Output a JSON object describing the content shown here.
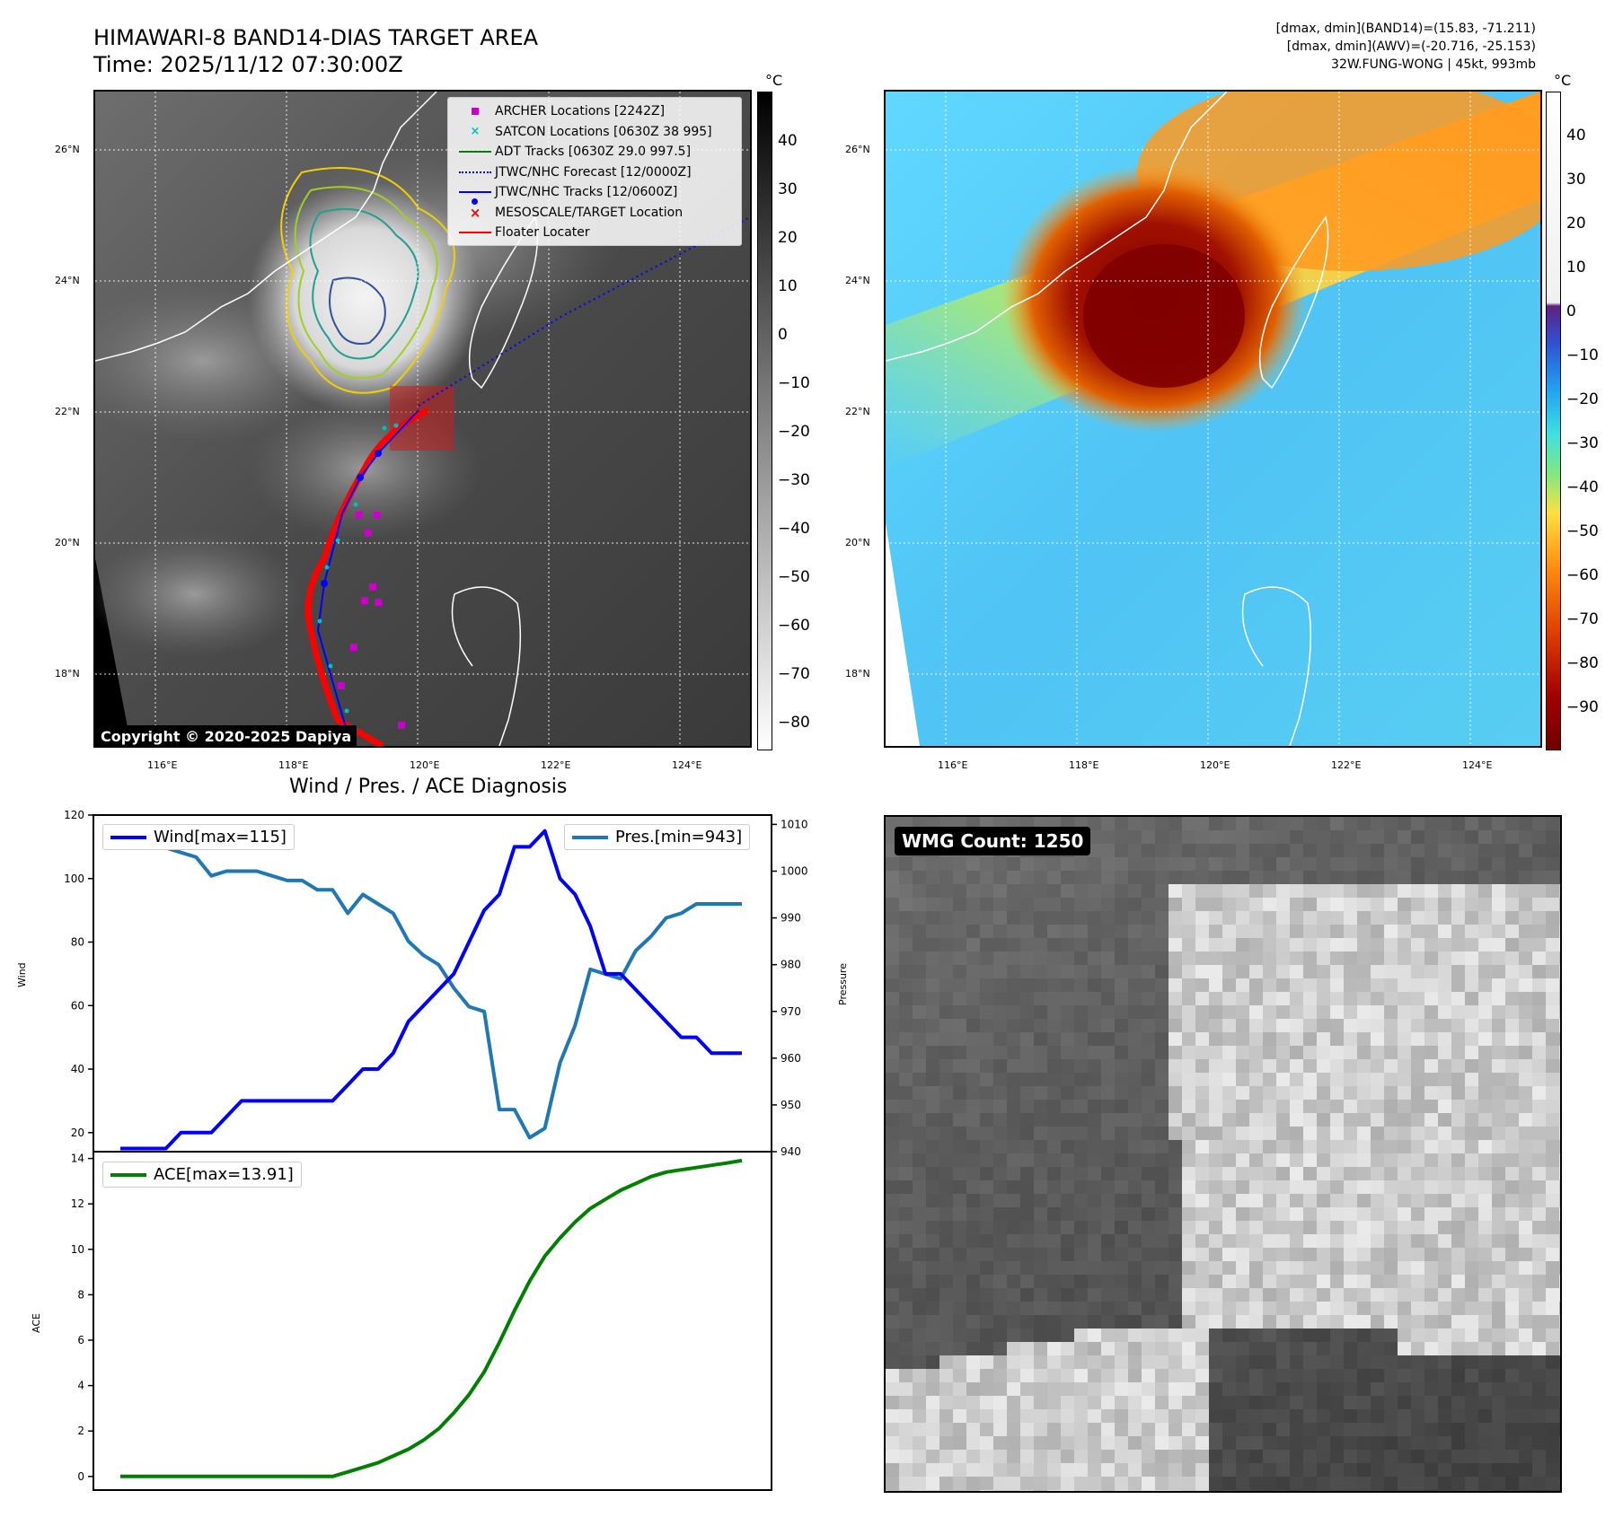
{
  "header": {
    "title_line1": "HIMAWARI-8 BAND14-DIAS TARGET AREA",
    "title_line2": "Time: 2025/11/12 07:30:00Z",
    "right_line1": "[dmax, dmin](BAND14)=(15.83, -71.211)",
    "right_line2": "[dmax, dmin](AWV)=(-20.716, -25.153)",
    "right_line3": "32W.FUNG-WONG | 45kt, 993mb"
  },
  "map": {
    "lon_labels": [
      "116°E",
      "118°E",
      "120°E",
      "122°E",
      "124°E"
    ],
    "lat_labels": [
      "26°N",
      "24°N",
      "22°N",
      "20°N",
      "18°N"
    ],
    "colorbar_unit": "°C",
    "gray_cbar_ticks": [
      "40",
      "30",
      "20",
      "10",
      "0",
      "−10",
      "−20",
      "−30",
      "−40",
      "−50",
      "−60",
      "−70",
      "−80"
    ],
    "color_cbar_ticks": [
      "40",
      "30",
      "20",
      "10",
      "0",
      "−10",
      "−20",
      "−30",
      "−40",
      "−50",
      "−60",
      "−70",
      "−80",
      "−90"
    ],
    "copyright": "Copyright © 2020-2025 Dapiya",
    "legend": [
      {
        "label": "ARCHER Locations [2242Z]",
        "color": "#cc00cc",
        "symbol": "square"
      },
      {
        "label": "SATCON Locations [0630Z 38 995]",
        "color": "#00bfbf",
        "symbol": "x"
      },
      {
        "label": "ADT Tracks [0630Z 29.0 997.5]",
        "color": "#008000",
        "symbol": "line"
      },
      {
        "label": "JTWC/NHC Forecast [12/0000Z]",
        "color": "#0000ff",
        "symbol": "dotted"
      },
      {
        "label": "JTWC/NHC Tracks [12/0600Z]",
        "color": "#0000ff",
        "symbol": "line-dot"
      },
      {
        "label": "MESOSCALE/TARGET Location",
        "color": "#ff0000",
        "symbol": "x"
      },
      {
        "label": "Floater Locater",
        "color": "#ff0000",
        "symbol": "line"
      }
    ]
  },
  "diagnosis": {
    "title": "Wind / Pres. / ACE Diagnosis",
    "wind_legend": "Wind[max=115]",
    "pres_legend": "Pres.[min=943]",
    "ace_legend": "ACE[max=13.91]",
    "wind_axis_label": "Wind",
    "pres_axis_label": "Pressure",
    "ace_axis_label": "ACE"
  },
  "wmg": {
    "badge": "WMG Count: 1250"
  },
  "colors": {
    "wind": "#0000ff",
    "pres": "#1f77b4",
    "ace": "#008000"
  },
  "chart_data": [
    {
      "type": "line",
      "title": "Wind / Pres. / ACE Diagnosis",
      "x": [
        0,
        1,
        2,
        3,
        4,
        5,
        6,
        7,
        8,
        9,
        10,
        11,
        12,
        13,
        14,
        15,
        16,
        17,
        18,
        19,
        20,
        21,
        22,
        23,
        24,
        25,
        26,
        27,
        28,
        29,
        30,
        31,
        32,
        33,
        34,
        35,
        36,
        37,
        38,
        39,
        40,
        41
      ],
      "series": [
        {
          "name": "Wind",
          "axis": "left",
          "values": [
            15,
            15,
            15,
            15,
            20,
            20,
            20,
            25,
            30,
            30,
            30,
            30,
            30,
            30,
            30,
            35,
            40,
            40,
            45,
            55,
            60,
            65,
            70,
            80,
            90,
            95,
            110,
            110,
            115,
            100,
            95,
            85,
            70,
            70,
            65,
            60,
            55,
            50,
            50,
            45,
            45,
            45
          ]
        },
        {
          "name": "Pressure",
          "axis": "right",
          "values": [
            1007,
            1005,
            1005,
            1005,
            1004,
            1003,
            999,
            1000,
            1000,
            1000,
            999,
            998,
            998,
            996,
            996,
            991,
            995,
            993,
            991,
            985,
            982,
            980,
            975,
            971,
            970,
            949,
            949,
            943,
            945,
            959,
            967,
            979,
            978,
            977,
            983,
            986,
            990,
            991,
            993,
            993,
            993,
            993
          ]
        }
      ],
      "ylim_left": [
        14,
        120
      ],
      "ylim_right": [
        940,
        1012
      ],
      "yticks_left": [
        20,
        40,
        60,
        80,
        100,
        120
      ],
      "yticks_right": [
        940,
        950,
        960,
        970,
        980,
        990,
        1000,
        1010
      ],
      "ylabel": "Wind",
      "ylabel_right": "Pressure"
    },
    {
      "type": "line",
      "title": "",
      "x": [
        0,
        1,
        2,
        3,
        4,
        5,
        6,
        7,
        8,
        9,
        10,
        11,
        12,
        13,
        14,
        15,
        16,
        17,
        18,
        19,
        20,
        21,
        22,
        23,
        24,
        25,
        26,
        27,
        28,
        29,
        30,
        31,
        32,
        33,
        34,
        35,
        36,
        37,
        38,
        39,
        40,
        41
      ],
      "series": [
        {
          "name": "ACE",
          "values": [
            0,
            0,
            0,
            0,
            0,
            0,
            0,
            0,
            0,
            0,
            0,
            0,
            0,
            0,
            0,
            0.2,
            0.4,
            0.6,
            0.9,
            1.2,
            1.6,
            2.1,
            2.8,
            3.6,
            4.6,
            5.9,
            7.3,
            8.6,
            9.7,
            10.5,
            11.2,
            11.8,
            12.2,
            12.6,
            12.9,
            13.2,
            13.4,
            13.5,
            13.6,
            13.7,
            13.8,
            13.91
          ]
        }
      ],
      "ylim": [
        -0.6,
        14.3
      ],
      "yticks": [
        0,
        2,
        4,
        6,
        8,
        10,
        12,
        14
      ],
      "ylabel": "ACE"
    }
  ]
}
